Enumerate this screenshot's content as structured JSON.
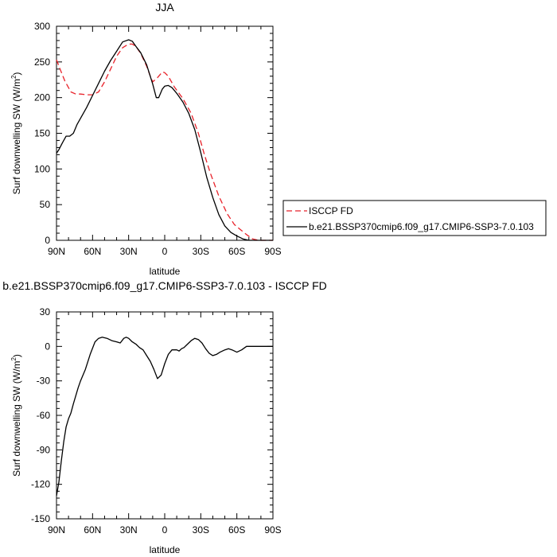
{
  "chart_data": [
    {
      "type": "line",
      "title": "JJA",
      "xlabel": "latitude",
      "ylabel": "Surf downwelling SW (W/m",
      "ylabel_sup": "2",
      "ylabel_end": ")",
      "xlim": [
        90,
        -90
      ],
      "ylim": [
        0,
        300
      ],
      "xticks": [
        90,
        60,
        30,
        0,
        -30,
        -60,
        -90
      ],
      "xtick_labels": [
        "90N",
        "60N",
        "30N",
        "0",
        "30S",
        "60S",
        "90S"
      ],
      "yticks": [
        0,
        50,
        100,
        150,
        200,
        250,
        300
      ],
      "ytick_labels": [
        "0",
        "50",
        "100",
        "150",
        "200",
        "250",
        "300"
      ],
      "legend": {
        "placement": "right"
      },
      "series": [
        {
          "name": "ISCCP FD",
          "color": "#e8222a",
          "dash": true,
          "x": [
            90,
            87,
            83,
            78,
            74,
            70,
            65,
            60,
            55,
            50,
            45,
            40,
            35,
            30,
            27,
            24,
            20,
            15,
            12,
            10,
            6,
            2,
            0,
            -3,
            -8,
            -15,
            -22,
            -28,
            -33,
            -38,
            -45,
            -52,
            -58,
            -63,
            -68,
            -73,
            -78,
            -82,
            -85,
            -88,
            -90
          ],
          "y": [
            253,
            240,
            223,
            208,
            205,
            205,
            204,
            204,
            208,
            222,
            240,
            258,
            270,
            275,
            275,
            272,
            262,
            244,
            230,
            222,
            228,
            236,
            235,
            230,
            215,
            199,
            178,
            150,
            120,
            94,
            62,
            37,
            22,
            15,
            8,
            2,
            0,
            0,
            0,
            0,
            0
          ]
        },
        {
          "name": "b.e21.BSSP370cmip6.f09_g17.CMIP6-SSP3-7.0.103",
          "color": "#000000",
          "dash": false,
          "x": [
            90,
            88,
            85,
            82,
            79,
            76,
            73,
            70,
            65,
            60,
            55,
            50,
            45,
            40,
            35,
            30,
            27,
            24,
            20,
            15,
            10,
            7,
            5,
            2,
            0,
            -3,
            -6,
            -10,
            -15,
            -20,
            -25,
            -30,
            -35,
            -40,
            -45,
            -50,
            -55,
            -60,
            -65,
            -70,
            -75,
            -80,
            -85,
            -90
          ],
          "y": [
            122,
            127,
            137,
            146,
            146,
            150,
            162,
            171,
            186,
            203,
            220,
            237,
            252,
            265,
            278,
            281,
            279,
            272,
            263,
            246,
            219,
            200,
            200,
            212,
            216,
            217,
            214,
            206,
            194,
            178,
            155,
            123,
            88,
            60,
            36,
            20,
            11,
            6,
            2,
            0,
            0,
            0,
            0,
            0
          ]
        }
      ]
    },
    {
      "type": "line",
      "title": "b.e21.BSSP370cmip6.f09_g17.CMIP6-SSP3-7.0.103 - ISCCP FD",
      "xlabel": "latitude",
      "ylabel": "Surf downwelling SW (W/m",
      "ylabel_sup": "2",
      "ylabel_end": ")",
      "xlim": [
        90,
        -90
      ],
      "ylim": [
        -150,
        30
      ],
      "xticks": [
        90,
        60,
        30,
        0,
        -30,
        -60,
        -90
      ],
      "xtick_labels": [
        "90N",
        "60N",
        "30N",
        "0",
        "30S",
        "60S",
        "90S"
      ],
      "yticks": [
        -150,
        -120,
        -90,
        -60,
        -30,
        0,
        30
      ],
      "ytick_labels": [
        "-150",
        "-120",
        "-90",
        "-60",
        "-30",
        "0",
        "30"
      ],
      "series": [
        {
          "color": "#000000",
          "dash": false,
          "x": [
            90,
            88,
            86,
            84,
            82,
            80,
            78,
            76,
            74,
            72,
            70,
            66,
            62,
            58,
            55,
            52,
            48,
            44,
            40,
            37,
            34,
            32,
            30,
            27,
            24,
            21,
            18,
            15,
            12,
            9,
            6,
            3,
            0,
            -3,
            -6,
            -8,
            -10,
            -12,
            -14,
            -16,
            -18,
            -20,
            -22,
            -25,
            -28,
            -31,
            -34,
            -37,
            -40,
            -43,
            -46,
            -50,
            -53,
            -56,
            -60,
            -64,
            -68,
            -71,
            -74,
            -77,
            -80,
            -85,
            -90
          ],
          "y": [
            -130,
            -118,
            -100,
            -83,
            -70,
            -63,
            -58,
            -50,
            -43,
            -36,
            -30,
            -20,
            -7,
            4,
            7,
            8,
            7,
            5,
            4,
            3,
            7,
            8,
            7,
            4,
            2,
            -1,
            -3,
            -8,
            -13,
            -20,
            -28,
            -25,
            -15,
            -7,
            -3,
            -3,
            -3,
            -4,
            -2,
            -1,
            1,
            3,
            5,
            7,
            6,
            3,
            -2,
            -6,
            -8,
            -7,
            -5,
            -3,
            -2,
            -3,
            -5,
            -3,
            0,
            0,
            0,
            0,
            0,
            0,
            0
          ]
        }
      ]
    }
  ]
}
